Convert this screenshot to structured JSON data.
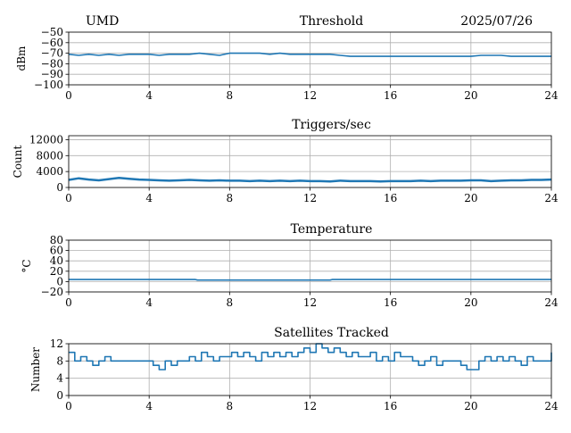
{
  "header": {
    "station": "UMD",
    "date": "2025/07/26"
  },
  "colors": {
    "series": "#1f77b4",
    "grid": "#b0b0b0",
    "axis": "#000000"
  },
  "chart_data": [
    {
      "type": "line",
      "title": "Threshold",
      "xlabel": "",
      "ylabel": "dBm",
      "xlim": [
        0,
        24
      ],
      "ylim": [
        -100,
        -50
      ],
      "xticks": [
        0,
        4,
        8,
        12,
        16,
        20,
        24
      ],
      "yticks": [
        -100,
        -90,
        -80,
        -70,
        -60,
        -50
      ],
      "ytick_labels": [
        "−100",
        "−90",
        "−80",
        "−70",
        "−60",
        "−50"
      ],
      "grid": true,
      "series": [
        {
          "x": [
            0,
            0.5,
            1,
            1.5,
            2,
            2.5,
            3,
            3.5,
            4,
            4.5,
            5,
            5.5,
            6,
            6.5,
            7,
            7.5,
            8,
            8.5,
            9,
            9.5,
            10,
            10.5,
            11,
            11.5,
            12,
            12.5,
            13,
            13.5,
            14,
            15,
            16,
            17,
            18,
            19,
            20,
            20.5,
            21,
            21.5,
            22,
            23,
            24
          ],
          "y": [
            -71,
            -72,
            -71,
            -72,
            -71,
            -72,
            -71,
            -71,
            -71,
            -72,
            -71,
            -71,
            -71,
            -70,
            -71,
            -72,
            -70,
            -70,
            -70,
            -70,
            -71,
            -70,
            -71,
            -71,
            -71,
            -71,
            -71,
            -72,
            -73,
            -73,
            -73,
            -73,
            -73,
            -73,
            -73,
            -72,
            -72,
            -72,
            -73,
            -73,
            -73
          ]
        }
      ]
    },
    {
      "type": "line",
      "title": "Triggers/sec",
      "xlabel": "",
      "ylabel": "Count",
      "xlim": [
        0,
        24
      ],
      "ylim": [
        0,
        13000
      ],
      "xticks": [
        0,
        4,
        8,
        12,
        16,
        20,
        24
      ],
      "yticks": [
        0,
        4000,
        8000,
        12000
      ],
      "ytick_labels": [
        "0",
        "4000",
        "8000",
        "12000"
      ],
      "grid": true,
      "series": [
        {
          "x": [
            0,
            0.5,
            1,
            1.5,
            2,
            2.5,
            3,
            3.5,
            4,
            4.5,
            5,
            5.5,
            6,
            6.5,
            7,
            7.5,
            8,
            8.5,
            9,
            9.5,
            10,
            10.5,
            11,
            11.5,
            12,
            12.5,
            13,
            13.5,
            14,
            14.5,
            15,
            15.5,
            16,
            16.5,
            17,
            17.5,
            18,
            18.5,
            19,
            19.5,
            20,
            20.5,
            21,
            21.5,
            22,
            22.5,
            23,
            23.5,
            24
          ],
          "y": [
            1900,
            2300,
            2000,
            1800,
            2100,
            2400,
            2200,
            2000,
            1900,
            1800,
            1700,
            1800,
            1900,
            1800,
            1700,
            1800,
            1700,
            1700,
            1600,
            1700,
            1600,
            1700,
            1600,
            1700,
            1600,
            1600,
            1500,
            1700,
            1600,
            1600,
            1600,
            1500,
            1600,
            1600,
            1600,
            1700,
            1600,
            1700,
            1700,
            1700,
            1800,
            1800,
            1600,
            1700,
            1800,
            1800,
            1900,
            1900,
            2000
          ]
        }
      ]
    },
    {
      "type": "line",
      "title": "Temperature",
      "xlabel": "",
      "ylabel": "°C",
      "xlim": [
        0,
        24
      ],
      "ylim": [
        -20,
        80
      ],
      "xticks": [
        0,
        4,
        8,
        12,
        16,
        20,
        24
      ],
      "yticks": [
        -20,
        0,
        20,
        40,
        60,
        80
      ],
      "ytick_labels": [
        "−20",
        "0",
        "20",
        "40",
        "60",
        "80"
      ],
      "grid": true,
      "series": [
        {
          "x": [
            0,
            6.3,
            6.4,
            13,
            13.1,
            24
          ],
          "y": [
            4,
            4,
            3,
            3,
            4,
            4
          ]
        }
      ]
    },
    {
      "type": "line",
      "title": "Satellites Tracked",
      "xlabel": "",
      "ylabel": "Number",
      "xlim": [
        0,
        24
      ],
      "ylim": [
        0,
        12
      ],
      "xticks": [
        0,
        4,
        8,
        12,
        16,
        20,
        24
      ],
      "yticks": [
        0,
        4,
        8,
        12
      ],
      "ytick_labels": [
        "0",
        "4",
        "8",
        "12"
      ],
      "grid": true,
      "series": [
        {
          "x": [
            0,
            0.3,
            0.6,
            0.9,
            1.2,
            1.5,
            1.8,
            2.1,
            2.4,
            2.7,
            3.0,
            3.3,
            3.6,
            3.9,
            4.2,
            4.5,
            4.8,
            5.1,
            5.4,
            5.7,
            6.0,
            6.3,
            6.6,
            6.9,
            7.2,
            7.5,
            7.8,
            8.1,
            8.4,
            8.7,
            9.0,
            9.3,
            9.6,
            9.9,
            10.2,
            10.5,
            10.8,
            11.1,
            11.4,
            11.7,
            12.0,
            12.3,
            12.6,
            12.9,
            13.2,
            13.5,
            13.8,
            14.1,
            14.4,
            14.7,
            15.0,
            15.3,
            15.6,
            15.9,
            16.2,
            16.5,
            16.8,
            17.1,
            17.4,
            17.7,
            18.0,
            18.3,
            18.6,
            18.9,
            19.2,
            19.5,
            19.8,
            20.1,
            20.4,
            20.7,
            21.0,
            21.3,
            21.6,
            21.9,
            22.2,
            22.5,
            22.8,
            23.1,
            23.4,
            23.7,
            24.0
          ],
          "y": [
            10,
            8,
            9,
            8,
            7,
            8,
            9,
            8,
            8,
            8,
            8,
            8,
            8,
            8,
            7,
            6,
            8,
            7,
            8,
            8,
            9,
            8,
            10,
            9,
            8,
            9,
            9,
            10,
            9,
            10,
            9,
            8,
            10,
            9,
            10,
            9,
            10,
            9,
            10,
            11,
            10,
            12,
            11,
            10,
            11,
            10,
            9,
            10,
            9,
            9,
            10,
            8,
            9,
            8,
            10,
            9,
            9,
            8,
            7,
            8,
            9,
            7,
            8,
            8,
            8,
            7,
            6,
            6,
            8,
            9,
            8,
            9,
            8,
            9,
            8,
            7,
            9,
            8,
            8,
            8,
            10
          ]
        }
      ]
    }
  ]
}
